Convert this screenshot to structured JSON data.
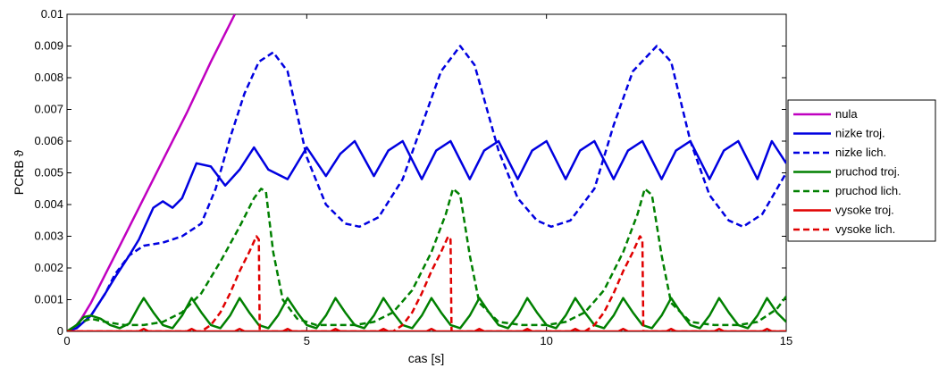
{
  "chart_data": {
    "type": "line",
    "title": "",
    "xlabel": "cas [s]",
    "ylabel": "PCRB ϑ",
    "xlim": [
      0,
      15
    ],
    "ylim": [
      0,
      0.01
    ],
    "grid": false,
    "legend_position": "right",
    "x_ticks": [
      "0",
      "5",
      "10",
      "15"
    ],
    "y_ticks": [
      "0",
      "0.001",
      "0.002",
      "0.003",
      "0.004",
      "0.005",
      "0.006",
      "0.007",
      "0.008",
      "0.009",
      "0.01"
    ],
    "series": [
      {
        "name": "nula",
        "color": "#c000c0",
        "style": "solid",
        "x": [
          0,
          0.1,
          0.2,
          0.3,
          0.5,
          0.8,
          1.0,
          1.5,
          2.0,
          2.5,
          3.0,
          3.5
        ],
        "y": [
          0,
          5e-05,
          0.0002,
          0.0004,
          0.0009,
          0.0018,
          0.0024,
          0.0039,
          0.0054,
          0.0069,
          0.0085,
          0.01
        ]
      },
      {
        "name": "nizke troj.",
        "color": "#0000e0",
        "style": "solid",
        "x": [
          0,
          0.2,
          0.5,
          0.8,
          1.0,
          1.3,
          1.5,
          1.8,
          2.0,
          2.2,
          2.4,
          2.7,
          3.0,
          3.3,
          3.6,
          3.9,
          4.2,
          4.6,
          5.0,
          5.4,
          5.7,
          6.0,
          6.4,
          6.7,
          7.0,
          7.4,
          7.7,
          8.0,
          8.4,
          8.7,
          9.0,
          9.4,
          9.7,
          10.0,
          10.4,
          10.7,
          11.0,
          11.4,
          11.7,
          12.0,
          12.4,
          12.7,
          13.0,
          13.4,
          13.7,
          14.0,
          14.4,
          14.7,
          15.0
        ],
        "y": [
          0,
          0.0001,
          0.0005,
          0.0012,
          0.0017,
          0.0024,
          0.0029,
          0.0039,
          0.0041,
          0.0039,
          0.0042,
          0.0053,
          0.0052,
          0.0046,
          0.0051,
          0.0058,
          0.0051,
          0.0048,
          0.0058,
          0.0049,
          0.0056,
          0.006,
          0.0049,
          0.0057,
          0.006,
          0.0048,
          0.0057,
          0.006,
          0.0048,
          0.0057,
          0.006,
          0.0048,
          0.0057,
          0.006,
          0.0048,
          0.0057,
          0.006,
          0.0048,
          0.0057,
          0.006,
          0.0048,
          0.0057,
          0.006,
          0.0048,
          0.0057,
          0.006,
          0.0048,
          0.006,
          0.0053
        ]
      },
      {
        "name": "nizke lich.",
        "color": "#0000e0",
        "style": "dashed",
        "x": [
          0,
          0.2,
          0.5,
          0.8,
          1.0,
          1.3,
          1.6,
          2.0,
          2.4,
          2.8,
          3.1,
          3.4,
          3.7,
          4.0,
          4.3,
          4.6,
          5.0,
          5.4,
          5.8,
          6.1,
          6.5,
          7.0,
          7.4,
          7.8,
          8.2,
          8.5,
          9.0,
          9.4,
          9.8,
          10.1,
          10.5,
          11.0,
          11.4,
          11.8,
          12.3,
          12.6,
          13.0,
          13.4,
          13.8,
          14.1,
          14.5,
          15.0
        ],
        "y": [
          0,
          0.0001,
          0.0005,
          0.0012,
          0.0018,
          0.0024,
          0.0027,
          0.0028,
          0.003,
          0.0034,
          0.0045,
          0.0061,
          0.0075,
          0.0085,
          0.0088,
          0.0082,
          0.0055,
          0.004,
          0.0034,
          0.0033,
          0.0036,
          0.0048,
          0.0065,
          0.0082,
          0.009,
          0.0084,
          0.0057,
          0.0042,
          0.0035,
          0.0033,
          0.0035,
          0.0045,
          0.0065,
          0.0082,
          0.009,
          0.0085,
          0.006,
          0.0043,
          0.0035,
          0.0033,
          0.0037,
          0.005
        ]
      },
      {
        "name": "pruchod troj.",
        "color": "#008000",
        "style": "solid",
        "x": [
          0,
          0.2,
          0.35,
          0.5,
          0.7,
          0.9,
          1.1,
          1.3,
          1.5,
          1.6,
          1.8,
          2.0,
          2.2,
          2.4,
          2.6,
          2.8,
          3.0,
          3.2,
          3.4,
          3.6,
          3.8,
          4.0,
          4.2,
          4.4,
          4.6,
          4.8,
          5.0,
          5.2,
          5.4,
          5.6,
          5.8,
          6.0,
          6.2,
          6.4,
          6.6,
          6.8,
          7.0,
          7.2,
          7.4,
          7.6,
          7.8,
          8.0,
          8.2,
          8.4,
          8.6,
          8.8,
          9.0,
          9.2,
          9.4,
          9.6,
          9.8,
          10.0,
          10.2,
          10.4,
          10.6,
          10.8,
          11.0,
          11.2,
          11.4,
          11.6,
          11.8,
          12.0,
          12.2,
          12.4,
          12.6,
          12.8,
          13.0,
          13.2,
          13.4,
          13.6,
          13.8,
          14.0,
          14.2,
          14.4,
          14.6,
          14.8,
          15.0
        ],
        "y": [
          0,
          0.0002,
          0.00045,
          0.0005,
          0.0004,
          0.0002,
          0.0001,
          0.00025,
          0.0008,
          0.00105,
          0.0006,
          0.0002,
          0.0001,
          0.0005,
          0.00105,
          0.0006,
          0.0002,
          0.0001,
          0.0005,
          0.00105,
          0.0006,
          0.0002,
          0.0001,
          0.0005,
          0.00105,
          0.0006,
          0.0002,
          0.0001,
          0.0005,
          0.00105,
          0.0006,
          0.0002,
          0.0001,
          0.0005,
          0.00105,
          0.0006,
          0.0002,
          0.0001,
          0.0005,
          0.00105,
          0.0006,
          0.0002,
          0.0001,
          0.0005,
          0.00105,
          0.0006,
          0.0002,
          0.0001,
          0.0005,
          0.00105,
          0.0006,
          0.0002,
          0.0001,
          0.0005,
          0.00105,
          0.0006,
          0.0002,
          0.0001,
          0.0005,
          0.00105,
          0.0006,
          0.0002,
          0.0001,
          0.0005,
          0.00105,
          0.0006,
          0.0002,
          0.0001,
          0.0005,
          0.00105,
          0.0006,
          0.0002,
          0.0001,
          0.0005,
          0.00105,
          0.0006,
          0.0003
        ]
      },
      {
        "name": "pruchod lich.",
        "color": "#008000",
        "style": "dashed",
        "x": [
          0,
          0.3,
          0.5,
          0.8,
          1.2,
          1.6,
          2.0,
          2.4,
          2.8,
          3.2,
          3.6,
          3.9,
          4.05,
          4.15,
          4.3,
          4.5,
          4.8,
          5.2,
          5.6,
          6.0,
          6.4,
          6.8,
          7.2,
          7.6,
          7.9,
          8.05,
          8.2,
          8.4,
          8.6,
          9.0,
          9.5,
          10.0,
          10.4,
          10.8,
          11.2,
          11.6,
          11.9,
          12.05,
          12.2,
          12.4,
          12.6,
          13.0,
          13.5,
          14.0,
          14.4,
          14.8,
          15.0
        ],
        "y": [
          0,
          0.0003,
          0.0004,
          0.0003,
          0.0002,
          0.0002,
          0.0003,
          0.0006,
          0.0012,
          0.0022,
          0.0033,
          0.0042,
          0.0045,
          0.0044,
          0.0025,
          0.001,
          0.0004,
          0.0002,
          0.0002,
          0.0002,
          0.0003,
          0.0006,
          0.0013,
          0.0025,
          0.0037,
          0.0045,
          0.0043,
          0.0024,
          0.0009,
          0.0003,
          0.0002,
          0.0002,
          0.0003,
          0.0006,
          0.0013,
          0.0025,
          0.0037,
          0.0045,
          0.0043,
          0.0024,
          0.0009,
          0.0003,
          0.0002,
          0.0002,
          0.0003,
          0.0007,
          0.0011
        ]
      },
      {
        "name": "vysoke troj.",
        "color": "#e00000",
        "style": "solid",
        "x": [
          0,
          1.5,
          1.6,
          1.7,
          2.5,
          2.6,
          2.7,
          3.5,
          3.6,
          3.7,
          4.5,
          4.6,
          4.7,
          5.5,
          5.6,
          5.7,
          6.5,
          6.6,
          6.7,
          7.5,
          7.6,
          7.7,
          8.5,
          8.6,
          8.7,
          9.5,
          9.6,
          9.7,
          10.5,
          10.6,
          10.7,
          11.5,
          11.6,
          11.7,
          12.5,
          12.6,
          12.7,
          13.5,
          13.6,
          13.7,
          14.5,
          14.6,
          14.7,
          15.0
        ],
        "y": [
          0,
          0,
          8e-05,
          0,
          0,
          8e-05,
          0,
          0,
          8e-05,
          0,
          0,
          8e-05,
          0,
          0,
          8e-05,
          0,
          0,
          8e-05,
          0,
          0,
          8e-05,
          0,
          0,
          8e-05,
          0,
          0,
          8e-05,
          0,
          0,
          8e-05,
          0,
          0,
          8e-05,
          0,
          0,
          8e-05,
          0,
          0,
          8e-05,
          0,
          0,
          8e-05,
          0,
          0
        ]
      },
      {
        "name": "vysoke lich.",
        "color": "#e00000",
        "style": "dashed",
        "x": [
          0,
          2.8,
          3.0,
          3.2,
          3.4,
          3.6,
          3.8,
          3.95,
          4.0,
          4.02,
          4.2,
          6.8,
          7.0,
          7.2,
          7.4,
          7.6,
          7.8,
          7.95,
          8.0,
          8.02,
          8.2,
          10.8,
          11.0,
          11.2,
          11.4,
          11.6,
          11.8,
          11.95,
          12.0,
          12.02,
          12.2,
          15.0
        ],
        "y": [
          0,
          0,
          0.0002,
          0.0006,
          0.0012,
          0.0019,
          0.0025,
          0.003,
          0.0029,
          0,
          0,
          0,
          0.0002,
          0.0006,
          0.0012,
          0.0019,
          0.0025,
          0.003,
          0.0029,
          0,
          0,
          0,
          0.0002,
          0.0006,
          0.0012,
          0.0019,
          0.0025,
          0.003,
          0.0029,
          0,
          0,
          0
        ]
      }
    ]
  }
}
